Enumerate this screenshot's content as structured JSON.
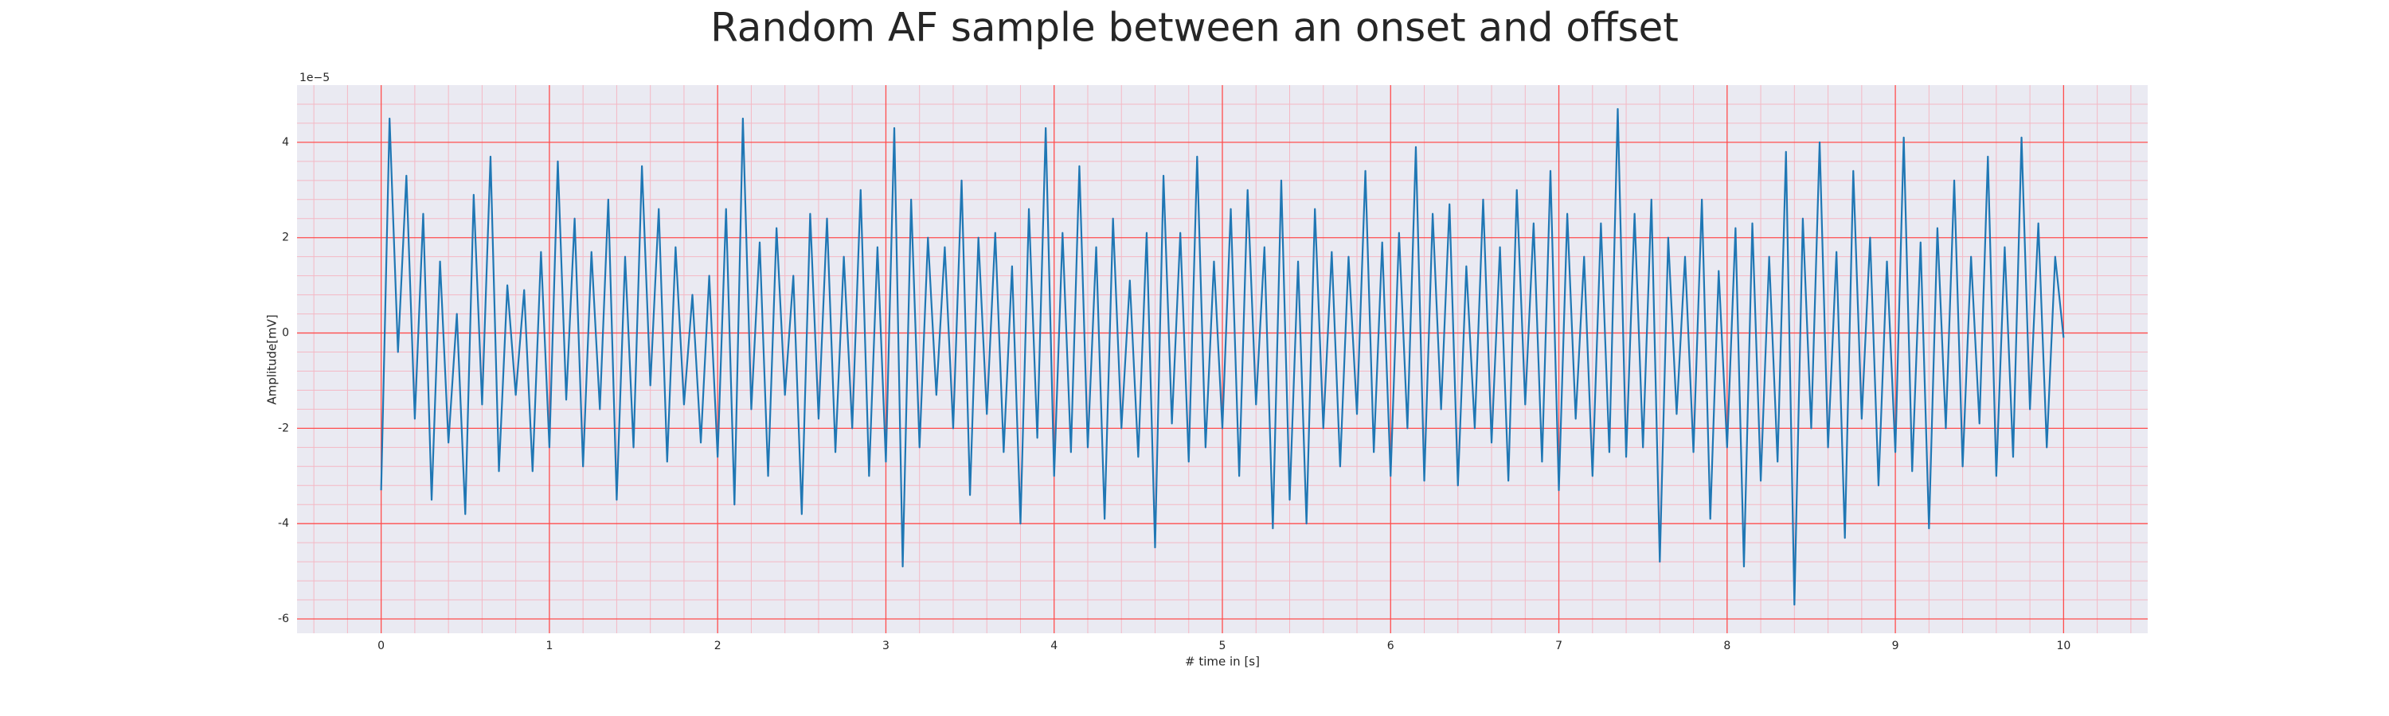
{
  "chart_data": {
    "type": "line",
    "title": "Random AF sample between an onset and offset",
    "xlabel": "# time in [s]",
    "ylabel": "Amplitude[mV]",
    "y_offset_label": "1e−5",
    "xlim": [
      -0.5,
      10.5
    ],
    "ylim": [
      -6.3,
      5.2
    ],
    "xticks": [
      0,
      1,
      2,
      3,
      4,
      5,
      6,
      7,
      8,
      9,
      10
    ],
    "yticks": [
      -6,
      -4,
      -2,
      0,
      2,
      4
    ],
    "grid": true,
    "minor_grid": true,
    "grid_color": "#ff4d4d",
    "minor_grid_color": "#f4b8c4",
    "background": "#eaeaf2",
    "x": [
      0,
      0.05,
      0.1,
      0.15,
      0.2,
      0.25,
      0.3,
      0.35,
      0.4,
      0.45,
      0.5,
      0.55,
      0.6,
      0.65,
      0.7,
      0.75,
      0.8,
      0.85,
      0.9,
      0.95,
      1,
      1.05,
      1.1,
      1.15,
      1.2,
      1.25,
      1.3,
      1.35,
      1.4,
      1.45,
      1.5,
      1.55,
      1.6,
      1.65,
      1.7,
      1.75,
      1.8,
      1.85,
      1.9,
      1.95,
      2,
      2.05,
      2.1,
      2.15,
      2.2,
      2.25,
      2.3,
      2.35,
      2.4,
      2.45,
      2.5,
      2.55,
      2.6,
      2.65,
      2.7,
      2.75,
      2.8,
      2.85,
      2.9,
      2.95,
      3,
      3.05,
      3.1,
      3.15,
      3.2,
      3.25,
      3.3,
      3.35,
      3.4,
      3.45,
      3.5,
      3.55,
      3.6,
      3.65,
      3.7,
      3.75,
      3.8,
      3.85,
      3.9,
      3.95,
      4,
      4.05,
      4.1,
      4.15,
      4.2,
      4.25,
      4.3,
      4.35,
      4.4,
      4.45,
      4.5,
      4.55,
      4.6,
      4.65,
      4.7,
      4.75,
      4.8,
      4.85,
      4.9,
      4.95,
      5,
      5.05,
      5.1,
      5.15,
      5.2,
      5.25,
      5.3,
      5.35,
      5.4,
      5.45,
      5.5,
      5.55,
      5.6,
      5.65,
      5.7,
      5.75,
      5.8,
      5.85,
      5.9,
      5.95,
      6,
      6.05,
      6.1,
      6.15,
      6.2,
      6.25,
      6.3,
      6.35,
      6.4,
      6.45,
      6.5,
      6.55,
      6.6,
      6.65,
      6.7,
      6.75,
      6.8,
      6.85,
      6.9,
      6.95,
      7,
      7.05,
      7.1,
      7.15,
      7.2,
      7.25,
      7.3,
      7.35,
      7.4,
      7.45,
      7.5,
      7.55,
      7.6,
      7.65,
      7.7,
      7.75,
      7.8,
      7.85,
      7.9,
      7.95,
      8,
      8.05,
      8.1,
      8.15,
      8.2,
      8.25,
      8.3,
      8.35,
      8.4,
      8.45,
      8.5,
      8.55,
      8.6,
      8.65,
      8.7,
      8.75,
      8.8,
      8.85,
      8.9,
      8.95,
      9,
      9.05,
      9.1,
      9.15,
      9.2,
      9.25,
      9.3,
      9.35,
      9.4,
      9.45,
      9.5,
      9.55,
      9.6,
      9.65,
      9.7,
      9.75,
      9.8,
      9.85,
      9.9,
      9.95,
      10
    ],
    "series": [
      {
        "color": "#1f77b4",
        "values": [
          -3.3,
          4.5,
          -0.4,
          3.3,
          -1.8,
          2.5,
          -3.5,
          1.5,
          -2.3,
          0.4,
          -3.8,
          2.9,
          -1.5,
          3.7,
          -2.9,
          1.0,
          -1.3,
          0.9,
          -2.9,
          1.7,
          -2.4,
          3.6,
          -1.4,
          2.4,
          -2.8,
          1.7,
          -1.6,
          2.8,
          -3.5,
          1.6,
          -2.4,
          3.5,
          -1.1,
          2.6,
          -2.7,
          1.8,
          -1.5,
          0.8,
          -2.3,
          1.2,
          -2.6,
          2.6,
          -3.6,
          4.5,
          -1.6,
          1.9,
          -3.0,
          2.2,
          -1.3,
          1.2,
          -3.8,
          2.5,
          -1.8,
          2.4,
          -2.5,
          1.6,
          -2.0,
          3.0,
          -3.0,
          1.8,
          -2.7,
          4.3,
          -4.9,
          2.8,
          -2.4,
          2.0,
          -1.3,
          1.8,
          -2.0,
          3.2,
          -3.4,
          2.0,
          -1.7,
          2.1,
          -2.5,
          1.4,
          -4.0,
          2.6,
          -2.2,
          4.3,
          -3.0,
          2.1,
          -2.5,
          3.5,
          -2.4,
          1.8,
          -3.9,
          2.4,
          -2.0,
          1.1,
          -2.6,
          2.1,
          -4.5,
          3.3,
          -1.9,
          2.1,
          -2.7,
          3.7,
          -2.4,
          1.5,
          -2.0,
          2.6,
          -3.0,
          3.0,
          -1.5,
          1.8,
          -4.1,
          3.2,
          -3.5,
          1.5,
          -4.0,
          2.6,
          -2.0,
          1.7,
          -2.8,
          1.6,
          -1.7,
          3.4,
          -2.5,
          1.9,
          -3.0,
          2.1,
          -2.0,
          3.9,
          -3.1,
          2.5,
          -1.6,
          2.7,
          -3.2,
          1.4,
          -2.0,
          2.8,
          -2.3,
          1.8,
          -3.1,
          3.0,
          -1.5,
          2.3,
          -2.7,
          3.4,
          -3.3,
          2.5,
          -1.8,
          1.6,
          -3.0,
          2.3,
          -2.5,
          4.7,
          -2.6,
          2.5,
          -2.4,
          2.8,
          -4.8,
          2.0,
          -1.7,
          1.6,
          -2.5,
          2.8,
          -3.9,
          1.3,
          -2.4,
          2.2,
          -4.9,
          2.3,
          -3.1,
          1.6,
          -2.7,
          3.8,
          -5.7,
          2.4,
          -2.0,
          4.0,
          -2.4,
          1.7,
          -4.3,
          3.4,
          -1.8,
          2.0,
          -3.2,
          1.5,
          -2.5,
          4.1,
          -2.9,
          1.9,
          -4.1,
          2.2,
          -2.0,
          3.2,
          -2.8,
          1.6,
          -1.9,
          3.7,
          -3.0,
          1.8,
          -2.6,
          4.1,
          -1.6,
          2.3,
          -2.4,
          1.6,
          -0.1
        ]
      }
    ]
  }
}
